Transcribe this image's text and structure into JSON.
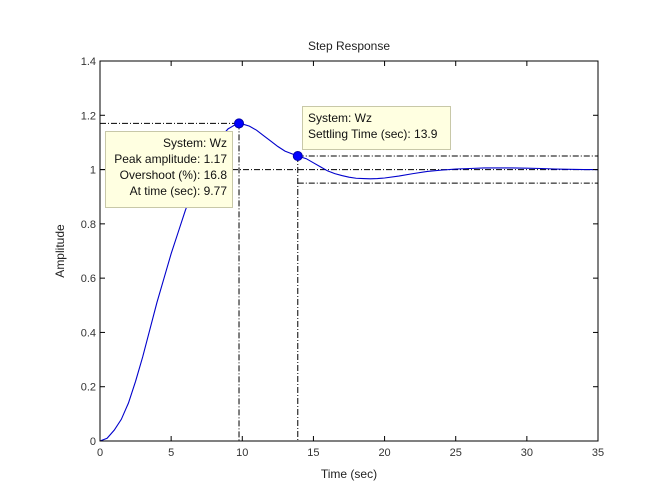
{
  "chart_data": {
    "type": "line",
    "title": "Step Response",
    "xlabel": "Time (sec)",
    "ylabel": "Amplitude",
    "xlim": [
      0,
      35
    ],
    "ylim": [
      0,
      1.4
    ],
    "xticks": [
      "0",
      "5",
      "10",
      "15",
      "20",
      "25",
      "30",
      "35"
    ],
    "yticks": [
      "0",
      "0.2",
      "0.4",
      "0.6",
      "0.8",
      "1",
      "1.2",
      "1.4"
    ],
    "grid": false,
    "series": [
      {
        "name": "Wz",
        "color": "#0000cc",
        "x": [
          0,
          0.5,
          1,
          1.5,
          2,
          2.5,
          3,
          3.5,
          4,
          4.5,
          5,
          5.5,
          6,
          6.5,
          7,
          7.5,
          8,
          8.5,
          9,
          9.5,
          9.77,
          10,
          10.5,
          11,
          11.5,
          12,
          12.5,
          13,
          13.5,
          13.9,
          14.5,
          15,
          15.5,
          16,
          16.5,
          17,
          17.5,
          18,
          18.5,
          19,
          19.5,
          20,
          21,
          22,
          23,
          24,
          25,
          26,
          27,
          28,
          29,
          30,
          31,
          32,
          33,
          34,
          35
        ],
        "y": [
          0,
          0.01,
          0.04,
          0.08,
          0.14,
          0.22,
          0.31,
          0.41,
          0.51,
          0.6,
          0.69,
          0.77,
          0.85,
          0.92,
          0.98,
          1.03,
          1.08,
          1.12,
          1.15,
          1.165,
          1.17,
          1.168,
          1.16,
          1.145,
          1.125,
          1.105,
          1.085,
          1.068,
          1.058,
          1.05,
          1.04,
          1.025,
          1.01,
          0.995,
          0.985,
          0.978,
          0.972,
          0.968,
          0.967,
          0.966,
          0.967,
          0.969,
          0.976,
          0.985,
          0.993,
          0.998,
          1.002,
          1.004,
          1.006,
          1.006,
          1.006,
          1.005,
          1.004,
          1.002,
          1.001,
          1.0,
          1.0
        ]
      }
    ],
    "reference_lines": {
      "final_value": 1.0,
      "settling_band": [
        0.95,
        1.05
      ],
      "peak": {
        "x": 9.77,
        "y": 1.17
      },
      "settling": {
        "x": 13.9,
        "y": 1.05
      }
    },
    "marker_color": "#0000ff"
  },
  "datatips": {
    "peak": {
      "line1": "System: Wz",
      "line2": "Peak amplitude: 1.17",
      "line3": "Overshoot (%): 16.8",
      "line4": "At time (sec): 9.77"
    },
    "settling": {
      "line1": "System: Wz",
      "line2": "Settling Time (sec): 13.9"
    }
  }
}
